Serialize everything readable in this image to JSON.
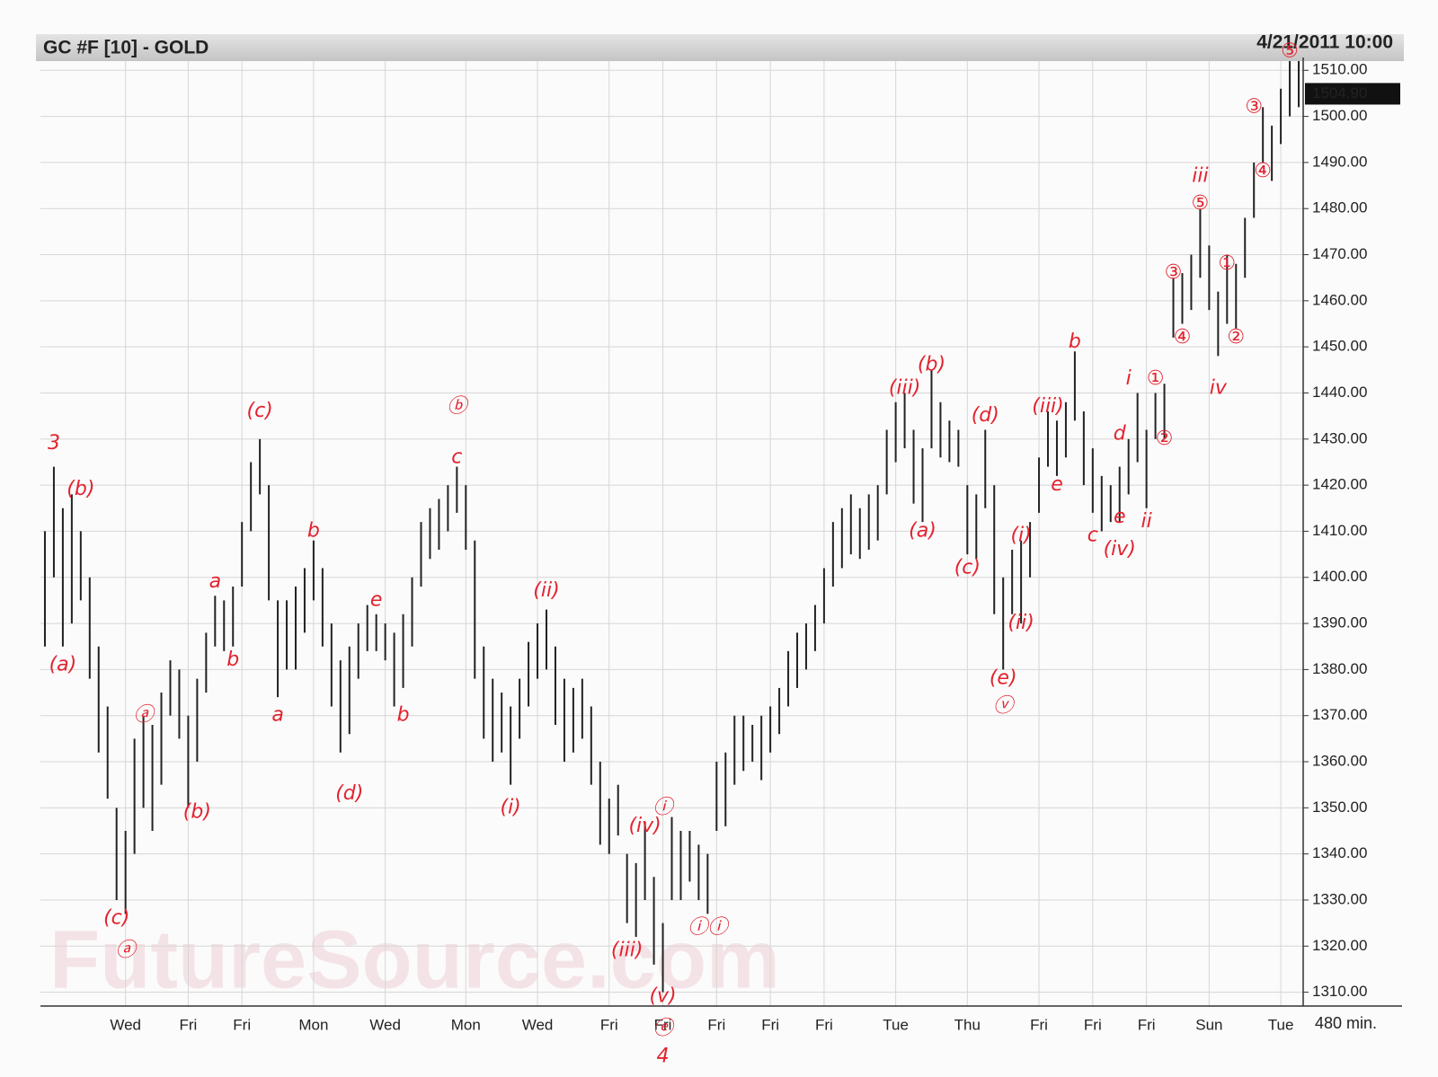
{
  "chart_data": {
    "type": "range-bar",
    "title": "GC #F [10] - GOLD",
    "timestamp": "4/21/2011 10:00",
    "interval": "480 min.",
    "watermark": "FutureSource.com",
    "color": "#222222",
    "annotation_color": "#e3222e",
    "grid": true,
    "ylim": [
      1307,
      1512
    ],
    "yticks": [
      {
        "value": 1310,
        "label": "1310.00"
      },
      {
        "value": 1320,
        "label": "1320.00"
      },
      {
        "value": 1330,
        "label": "1330.00"
      },
      {
        "value": 1340,
        "label": "1340.00"
      },
      {
        "value": 1350,
        "label": "1350.00"
      },
      {
        "value": 1360,
        "label": "1360.00"
      },
      {
        "value": 1370,
        "label": "1370.00"
      },
      {
        "value": 1380,
        "label": "1380.00"
      },
      {
        "value": 1390,
        "label": "1390.00"
      },
      {
        "value": 1400,
        "label": "1400.00"
      },
      {
        "value": 1410,
        "label": "1410.00"
      },
      {
        "value": 1420,
        "label": "1420.00"
      },
      {
        "value": 1430,
        "label": "1430.00"
      },
      {
        "value": 1440,
        "label": "1440.00"
      },
      {
        "value": 1450,
        "label": "1450.00"
      },
      {
        "value": 1460,
        "label": "1460.00"
      },
      {
        "value": 1470,
        "label": "1470.00"
      },
      {
        "value": 1480,
        "label": "1480.00"
      },
      {
        "value": 1490,
        "label": "1490.00"
      },
      {
        "value": 1500,
        "label": "1500.00"
      },
      {
        "value": 1510,
        "label": "1510.00"
      }
    ],
    "last_price": {
      "value": 1504.9,
      "label": "1504.90"
    },
    "categories": [
      null,
      null,
      null,
      null,
      null,
      null,
      null,
      null,
      null,
      "Wed",
      null,
      null,
      null,
      null,
      null,
      null,
      "Fri",
      null,
      null,
      null,
      null,
      null,
      "Fri",
      null,
      null,
      null,
      null,
      null,
      null,
      null,
      "Mon",
      null,
      null,
      null,
      null,
      null,
      null,
      null,
      "Wed",
      null,
      null,
      null,
      null,
      null,
      null,
      null,
      null,
      "Mon",
      null,
      null,
      null,
      null,
      null,
      null,
      null,
      "Wed",
      null,
      null,
      null,
      null,
      null,
      null,
      null,
      "Fri",
      null,
      null,
      null,
      null,
      null,
      "Fri",
      null,
      null,
      null,
      null,
      null,
      "Fri",
      null,
      null,
      null,
      null,
      null,
      "Fri",
      null,
      null,
      null,
      null,
      null,
      "Fri",
      null,
      null,
      null,
      null,
      null,
      null,
      null,
      "Tue",
      null,
      null,
      null,
      null,
      null,
      null,
      null,
      "Thu",
      null,
      null,
      null,
      null,
      null,
      null,
      null,
      "Fri",
      null,
      null,
      null,
      null,
      null,
      "Fri",
      null,
      null,
      null,
      null,
      null,
      "Fri",
      null,
      null,
      null,
      null,
      null,
      null,
      "Sun",
      null,
      null,
      null,
      null,
      null,
      null,
      null,
      "Tue",
      null,
      null
    ],
    "high": [
      1410,
      1424,
      1415,
      1418,
      1410,
      1400,
      1385,
      1372,
      1350,
      1345,
      1365,
      1370,
      1368,
      1375,
      1382,
      1380,
      1370,
      1378,
      1388,
      1396,
      1395,
      1398,
      1412,
      1425,
      1430,
      1420,
      1395,
      1395,
      1398,
      1402,
      1408,
      1402,
      1390,
      1382,
      1385,
      1390,
      1394,
      1392,
      1390,
      1388,
      1392,
      1400,
      1412,
      1415,
      1417,
      1420,
      1424,
      1420,
      1408,
      1385,
      1378,
      1375,
      1372,
      1378,
      1386,
      1390,
      1393,
      1385,
      1378,
      1376,
      1378,
      1372,
      1360,
      1352,
      1355,
      1340,
      1338,
      1347,
      1335,
      1325,
      1348,
      1345,
      1345,
      1342,
      1340,
      1360,
      1362,
      1370,
      1370,
      1368,
      1370,
      1372,
      1376,
      1384,
      1388,
      1390,
      1394,
      1402,
      1412,
      1415,
      1418,
      1415,
      1418,
      1420,
      1432,
      1438,
      1440,
      1432,
      1428,
      1445,
      1438,
      1434,
      1432,
      1420,
      1418,
      1432,
      1420,
      1400,
      1406,
      1408,
      1412,
      1426,
      1436,
      1434,
      1438,
      1449,
      1436,
      1428,
      1422,
      1420,
      1424,
      1430,
      1440,
      1432,
      1440,
      1442,
      1465,
      1466,
      1470,
      1480,
      1472,
      1462,
      1470,
      1468,
      1478,
      1490,
      1502,
      1498,
      1506,
      1512,
      1512
    ],
    "low": [
      1385,
      1400,
      1385,
      1390,
      1395,
      1378,
      1362,
      1352,
      1330,
      1327,
      1340,
      1350,
      1345,
      1355,
      1370,
      1365,
      1350,
      1360,
      1375,
      1385,
      1384,
      1385,
      1398,
      1410,
      1418,
      1395,
      1374,
      1380,
      1380,
      1388,
      1395,
      1385,
      1372,
      1362,
      1366,
      1378,
      1384,
      1384,
      1382,
      1372,
      1376,
      1385,
      1398,
      1404,
      1406,
      1410,
      1414,
      1406,
      1378,
      1365,
      1360,
      1362,
      1355,
      1365,
      1372,
      1378,
      1380,
      1368,
      1360,
      1362,
      1365,
      1355,
      1342,
      1340,
      1344,
      1325,
      1322,
      1330,
      1316,
      1310,
      1330,
      1330,
      1334,
      1330,
      1327,
      1345,
      1346,
      1355,
      1358,
      1360,
      1356,
      1362,
      1366,
      1372,
      1376,
      1380,
      1384,
      1390,
      1398,
      1402,
      1405,
      1404,
      1406,
      1408,
      1418,
      1425,
      1428,
      1416,
      1412,
      1428,
      1426,
      1425,
      1424,
      1405,
      1404,
      1415,
      1392,
      1380,
      1392,
      1390,
      1400,
      1414,
      1424,
      1422,
      1426,
      1434,
      1420,
      1414,
      1410,
      1412,
      1412,
      1418,
      1425,
      1415,
      1430,
      1430,
      1452,
      1455,
      1458,
      1465,
      1458,
      1448,
      1455,
      1454,
      1465,
      1478,
      1490,
      1486,
      1494,
      1500,
      1502
    ],
    "annotations": [
      {
        "text": "3",
        "x": 1,
        "y": 1429
      },
      {
        "text": "(b)",
        "x": 4,
        "y": 1419
      },
      {
        "text": "(a)",
        "x": 2,
        "y": 1381
      },
      {
        "text": "(c)",
        "x": 8,
        "y": 1326
      },
      {
        "text": "ⓐ",
        "x": 9,
        "y": 1319
      },
      {
        "text": "ⓐ",
        "x": 11,
        "y": 1370
      },
      {
        "text": "(b)",
        "x": 17,
        "y": 1349
      },
      {
        "text": "a",
        "x": 19,
        "y": 1399
      },
      {
        "text": "b",
        "x": 21,
        "y": 1382
      },
      {
        "text": "(c)",
        "x": 24,
        "y": 1436
      },
      {
        "text": "a",
        "x": 26,
        "y": 1370
      },
      {
        "text": "b",
        "x": 30,
        "y": 1410
      },
      {
        "text": "(d)",
        "x": 34,
        "y": 1353
      },
      {
        "text": "e",
        "x": 37,
        "y": 1395
      },
      {
        "text": "b",
        "x": 40,
        "y": 1370
      },
      {
        "text": "ⓑ",
        "x": 46,
        "y": 1437
      },
      {
        "text": "c",
        "x": 46,
        "y": 1426
      },
      {
        "text": "(i)",
        "x": 52,
        "y": 1350
      },
      {
        "text": "(ii)",
        "x": 56,
        "y": 1397
      },
      {
        "text": "(iv)",
        "x": 67,
        "y": 1346
      },
      {
        "text": "(iii)",
        "x": 65,
        "y": 1319
      },
      {
        "text": "ⓘ",
        "x": 69,
        "y": 1350
      },
      {
        "text": "(v)",
        "x": 69,
        "y": 1309
      },
      {
        "text": "ⓔ",
        "x": 69,
        "y": 1302
      },
      {
        "text": "4",
        "x": 69,
        "y": 1296
      },
      {
        "text": "ⓘⓘ",
        "x": 74,
        "y": 1324
      },
      {
        "text": "(iii)",
        "x": 96,
        "y": 1441
      },
      {
        "text": "(b)",
        "x": 99,
        "y": 1446
      },
      {
        "text": "(a)",
        "x": 98,
        "y": 1410
      },
      {
        "text": "(d)",
        "x": 105,
        "y": 1435
      },
      {
        "text": "(c)",
        "x": 103,
        "y": 1402
      },
      {
        "text": "(e)",
        "x": 107,
        "y": 1378
      },
      {
        "text": "ⓥ",
        "x": 107,
        "y": 1372
      },
      {
        "text": "(i)",
        "x": 109,
        "y": 1409
      },
      {
        "text": "(ii)",
        "x": 109,
        "y": 1390
      },
      {
        "text": "(iii)",
        "x": 112,
        "y": 1437
      },
      {
        "text": "e",
        "x": 113,
        "y": 1420
      },
      {
        "text": "b",
        "x": 115,
        "y": 1451
      },
      {
        "text": "c",
        "x": 117,
        "y": 1409
      },
      {
        "text": "d",
        "x": 120,
        "y": 1431
      },
      {
        "text": "e",
        "x": 120,
        "y": 1413
      },
      {
        "text": "(iv)",
        "x": 120,
        "y": 1406
      },
      {
        "text": "i",
        "x": 121,
        "y": 1443
      },
      {
        "text": "ii",
        "x": 123,
        "y": 1412
      },
      {
        "text": "①",
        "x": 124,
        "y": 1443
      },
      {
        "text": "②",
        "x": 125,
        "y": 1430
      },
      {
        "text": "③",
        "x": 126,
        "y": 1466
      },
      {
        "text": "④",
        "x": 127,
        "y": 1452
      },
      {
        "text": "iii",
        "x": 129,
        "y": 1487
      },
      {
        "text": "⑤",
        "x": 129,
        "y": 1481
      },
      {
        "text": "①",
        "x": 132,
        "y": 1468
      },
      {
        "text": "②",
        "x": 133,
        "y": 1452
      },
      {
        "text": "iv",
        "x": 131,
        "y": 1441
      },
      {
        "text": "③",
        "x": 135,
        "y": 1502
      },
      {
        "text": "④",
        "x": 136,
        "y": 1488
      },
      {
        "text": "⑤",
        "x": 139,
        "y": 1514
      }
    ]
  }
}
